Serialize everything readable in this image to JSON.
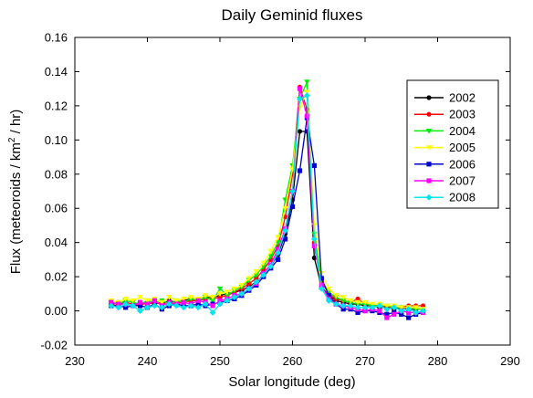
{
  "chart_data": {
    "type": "line",
    "title": "Daily Geminid fluxes",
    "xlabel": "Solar longitude (deg)",
    "ylabel_parts": [
      "Flux (meteoroids / km",
      "2",
      " / hr)"
    ],
    "xlim": [
      230,
      290
    ],
    "ylim": [
      -0.02,
      0.16
    ],
    "xticks": [
      "230",
      "240",
      "250",
      "260",
      "270",
      "280",
      "290"
    ],
    "yticks": [
      "-0.02",
      "0.00",
      "0.02",
      "0.04",
      "0.06",
      "0.08",
      "0.10",
      "0.12",
      "0.14",
      "0.16"
    ],
    "legend_position": "right",
    "series": [
      {
        "name": "2002",
        "color": "#000000",
        "marker": "circle",
        "x": [
          235,
          236,
          237,
          238,
          239,
          240,
          241,
          242,
          243,
          244,
          245,
          246,
          247,
          248,
          249,
          250,
          251,
          252,
          253,
          254,
          255,
          256,
          257,
          258,
          259,
          260,
          261,
          262,
          263,
          264,
          265,
          266,
          267,
          268,
          269,
          270,
          271,
          272,
          273,
          274,
          275,
          276,
          277,
          278
        ],
        "y": [
          0.004,
          0.005,
          0.004,
          0.003,
          0.005,
          0.004,
          0.005,
          0.004,
          0.006,
          0.005,
          0.006,
          0.007,
          0.006,
          0.008,
          0.008,
          0.009,
          0.01,
          0.011,
          0.012,
          0.014,
          0.017,
          0.021,
          0.026,
          0.033,
          0.045,
          0.065,
          0.105,
          0.105,
          0.031,
          0.014,
          0.009,
          0.006,
          0.005,
          0.004,
          0.004,
          0.003,
          0.003,
          0.002,
          0.002,
          0.001,
          0.002,
          0.001,
          0.001,
          0.001
        ]
      },
      {
        "name": "2003",
        "color": "#ff0000",
        "marker": "circle",
        "x": [
          235,
          236,
          237,
          238,
          239,
          240,
          241,
          242,
          243,
          244,
          245,
          246,
          247,
          248,
          249,
          250,
          251,
          252,
          253,
          254,
          255,
          256,
          257,
          258,
          259,
          260,
          261,
          262,
          263,
          264,
          265,
          266,
          267,
          268,
          269,
          270,
          271,
          272,
          273,
          274,
          275,
          276,
          277,
          278
        ],
        "y": [
          0.004,
          0.003,
          0.005,
          0.004,
          0.003,
          0.005,
          0.004,
          0.005,
          0.003,
          0.005,
          0.005,
          0.006,
          0.006,
          0.007,
          0.007,
          0.008,
          0.009,
          0.011,
          0.013,
          0.016,
          0.019,
          0.024,
          0.03,
          0.038,
          0.055,
          0.08,
          0.131,
          0.118,
          0.04,
          0.017,
          0.01,
          0.007,
          0.006,
          0.005,
          0.007,
          0.004,
          0.003,
          0.003,
          0.002,
          0.002,
          0.002,
          0.003,
          0.003,
          0.003
        ]
      },
      {
        "name": "2004",
        "color": "#00ee00",
        "marker": "triangle-down",
        "x": [
          235,
          236,
          237,
          238,
          239,
          240,
          241,
          242,
          243,
          244,
          245,
          246,
          247,
          248,
          249,
          250,
          251,
          252,
          253,
          254,
          255,
          256,
          257,
          258,
          259,
          260,
          261,
          262,
          263,
          264,
          265,
          266,
          267,
          268,
          269,
          270,
          271,
          272,
          273,
          274,
          275,
          276,
          277,
          278
        ],
        "y": [
          0.005,
          0.004,
          0.006,
          0.005,
          0.004,
          0.006,
          0.005,
          0.006,
          0.004,
          0.006,
          0.005,
          0.007,
          0.006,
          0.008,
          0.006,
          0.013,
          0.009,
          0.012,
          0.014,
          0.018,
          0.021,
          0.026,
          0.032,
          0.04,
          0.065,
          0.085,
          0.124,
          0.134,
          0.045,
          0.018,
          0.011,
          0.008,
          0.006,
          0.005,
          0.004,
          0.004,
          0.003,
          0.003,
          0.003,
          0.002,
          0.002,
          0.002,
          0.001,
          0.001
        ]
      },
      {
        "name": "2005",
        "color": "#ffff00",
        "marker": "triangle-down",
        "x": [
          235,
          236,
          237,
          238,
          239,
          240,
          241,
          242,
          243,
          244,
          245,
          246,
          247,
          248,
          249,
          250,
          251,
          252,
          253,
          254,
          255,
          256,
          257,
          258,
          259,
          260,
          261,
          262,
          263,
          264,
          265,
          266,
          267,
          268,
          269,
          270,
          271,
          272,
          273,
          274,
          275,
          276,
          277,
          278
        ],
        "y": [
          0.006,
          0.005,
          0.007,
          0.006,
          0.008,
          0.006,
          0.007,
          0.005,
          0.008,
          0.006,
          0.007,
          0.008,
          0.007,
          0.009,
          0.008,
          0.01,
          0.011,
          0.013,
          0.015,
          0.019,
          0.023,
          0.028,
          0.035,
          0.043,
          0.06,
          0.083,
          0.119,
          0.128,
          0.05,
          0.022,
          0.013,
          0.009,
          0.008,
          0.006,
          0.005,
          0.005,
          0.004,
          0.004,
          0.003,
          0.003,
          0.002,
          0.002,
          0.002,
          0.001
        ]
      },
      {
        "name": "2006",
        "color": "#0000cc",
        "marker": "square",
        "x": [
          235,
          236,
          237,
          238,
          239,
          240,
          241,
          242,
          243,
          244,
          245,
          246,
          247,
          248,
          249,
          250,
          251,
          252,
          253,
          254,
          255,
          256,
          257,
          258,
          259,
          260,
          261,
          262,
          263,
          264,
          265,
          266,
          267,
          268,
          269,
          270,
          271,
          272,
          273,
          274,
          275,
          276,
          277,
          278
        ],
        "y": [
          0.003,
          0.003,
          0.002,
          0.003,
          0.003,
          0.002,
          0.004,
          0.001,
          0.003,
          0.004,
          0.003,
          0.003,
          0.004,
          0.003,
          0.004,
          0.005,
          0.006,
          0.007,
          0.009,
          0.012,
          0.015,
          0.02,
          0.025,
          0.03,
          0.042,
          0.061,
          0.082,
          0.113,
          0.085,
          0.019,
          0.009,
          0.004,
          0.001,
          0.001,
          -0.001,
          0.0,
          0.0,
          -0.001,
          -0.002,
          -0.001,
          -0.002,
          -0.004,
          -0.002,
          -0.001
        ]
      },
      {
        "name": "2007",
        "color": "#ff00ff",
        "marker": "square",
        "x": [
          235,
          236,
          237,
          238,
          239,
          240,
          241,
          242,
          243,
          244,
          245,
          246,
          247,
          248,
          249,
          250,
          251,
          252,
          253,
          254,
          255,
          256,
          257,
          258,
          259,
          260,
          261,
          262,
          263,
          264,
          265,
          266,
          267,
          268,
          269,
          270,
          271,
          272,
          273,
          274,
          275,
          276,
          277,
          278
        ],
        "y": [
          0.005,
          0.004,
          0.004,
          0.003,
          0.005,
          0.004,
          0.006,
          0.003,
          0.005,
          0.004,
          0.005,
          0.004,
          0.006,
          0.005,
          0.003,
          0.006,
          0.007,
          0.009,
          0.01,
          0.013,
          0.016,
          0.022,
          0.027,
          0.036,
          0.048,
          0.07,
          0.13,
          0.114,
          0.038,
          0.015,
          0.007,
          0.004,
          0.003,
          0.002,
          0.001,
          0.0,
          0.001,
          0.0,
          -0.004,
          -0.002,
          0.0,
          -0.001,
          -0.001,
          -0.001
        ]
      },
      {
        "name": "2008",
        "color": "#00e5ee",
        "marker": "diamond",
        "x": [
          235,
          236,
          237,
          238,
          239,
          240,
          241,
          242,
          243,
          244,
          245,
          246,
          247,
          248,
          249,
          250,
          251,
          252,
          253,
          254,
          255,
          256,
          257,
          258,
          259,
          260,
          261,
          262,
          263,
          264,
          265,
          266,
          267,
          268,
          269,
          270,
          271,
          272,
          273,
          274,
          275,
          276,
          277,
          278
        ],
        "y": [
          0.003,
          0.002,
          0.004,
          0.003,
          0.0,
          0.002,
          0.003,
          0.002,
          0.004,
          0.003,
          0.002,
          0.003,
          0.002,
          0.004,
          -0.001,
          0.004,
          0.006,
          0.008,
          0.01,
          0.013,
          0.017,
          0.021,
          0.026,
          0.034,
          0.047,
          0.07,
          0.124,
          0.126,
          0.042,
          0.013,
          0.006,
          0.004,
          0.003,
          0.003,
          0.002,
          0.002,
          0.002,
          0.003,
          0.001,
          0.002,
          0.0,
          0.001,
          -0.001,
          0.0
        ]
      }
    ]
  }
}
